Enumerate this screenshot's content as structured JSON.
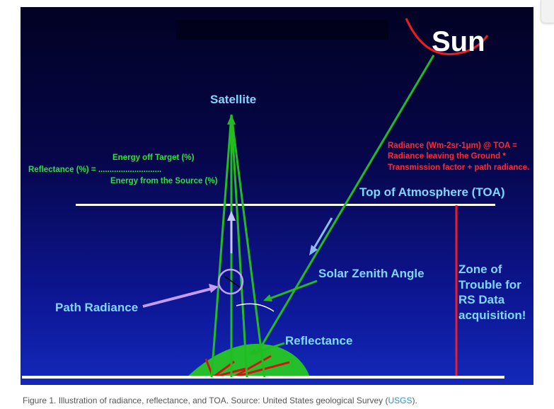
{
  "diagram": {
    "sun": "Sun",
    "satellite": "Satellite",
    "toa": "Top of Atmosphere (TOA)",
    "path_radiance": "Path Radiance",
    "solar_zenith_angle": "Solar Zenith Angle",
    "reflectance": "Reflectance",
    "zone_lines": [
      "Zone of",
      "Trouble for",
      "RS Data",
      "acquisition!"
    ],
    "formula": {
      "left": "Reflectance (%) = ............................",
      "numerator": "Energy off Target (%)",
      "denominator": "Energy from the Source (%)"
    },
    "radiance_note": "Radiance (Wm-2sr-1μm) @ TOA = Radiance leaving the Ground * Transmission factor + path radiance."
  },
  "caption": {
    "text": "Figure 1. Illustration of radiance, reflectance, and TOA. Source: United States geological Survey (",
    "link": "USGS",
    "end": ")."
  },
  "colors": {
    "label_cyan": "#7fd7ff",
    "formula_green": "#26e33e",
    "note_red": "#ff2a35",
    "ray_green": "#22bb22",
    "toa_line": "#ffffff"
  }
}
